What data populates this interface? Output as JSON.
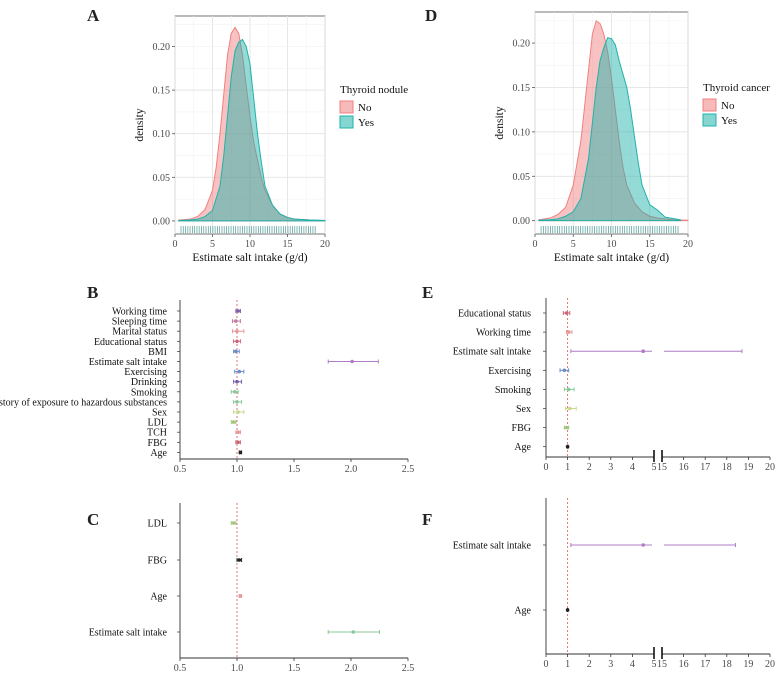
{
  "colors": {
    "no": "#F08080",
    "yes": "#20B2AA",
    "ref_line": "#E06666",
    "grid": "#EBEBEB"
  },
  "chart_data": [
    {
      "panel": "A",
      "type": "area",
      "xlabel": "Estimate salt intake (g/d)",
      "ylabel": "density",
      "xlim": [
        0,
        20
      ],
      "ylim": [
        -0.015,
        0.235
      ],
      "x_ticks": [
        0,
        5,
        10,
        15,
        20
      ],
      "y_ticks": [
        0.0,
        0.05,
        0.1,
        0.15,
        0.2
      ],
      "y_tick_labels": [
        "0.00",
        "0.05",
        "0.10",
        "0.15",
        "0.20"
      ],
      "legend": {
        "title": "Thyroid nodule",
        "position": "right"
      },
      "series": [
        {
          "name": "No",
          "color_key": "no",
          "x": [
            0.5,
            2,
            3,
            4,
            5,
            5.5,
            6,
            6.5,
            7,
            7.5,
            8,
            8.5,
            9,
            9.5,
            10,
            10.5,
            11,
            11.5,
            12,
            13,
            14,
            15,
            16,
            18,
            20
          ],
          "y": [
            0.001,
            0.002,
            0.005,
            0.013,
            0.035,
            0.062,
            0.1,
            0.145,
            0.19,
            0.215,
            0.222,
            0.215,
            0.19,
            0.155,
            0.12,
            0.09,
            0.07,
            0.05,
            0.035,
            0.018,
            0.008,
            0.004,
            0.002,
            0.001,
            0.0005
          ]
        },
        {
          "name": "Yes",
          "color_key": "yes",
          "x": [
            0.5,
            2,
            3,
            4,
            5,
            6,
            6.5,
            7,
            7.5,
            8,
            8.5,
            9,
            9.5,
            10,
            10.5,
            11,
            11.5,
            12,
            13,
            14,
            15,
            16,
            18,
            20
          ],
          "y": [
            0.0005,
            0.001,
            0.002,
            0.005,
            0.012,
            0.04,
            0.075,
            0.12,
            0.165,
            0.195,
            0.205,
            0.208,
            0.2,
            0.18,
            0.14,
            0.1,
            0.068,
            0.04,
            0.018,
            0.008,
            0.004,
            0.002,
            0.001,
            0.0005
          ]
        }
      ]
    },
    {
      "panel": "D",
      "type": "area",
      "xlabel": "Estimate salt intake (g/d)",
      "ylabel": "density",
      "xlim": [
        0,
        20
      ],
      "ylim": [
        -0.015,
        0.235
      ],
      "x_ticks": [
        0,
        5,
        10,
        15,
        20
      ],
      "y_ticks": [
        0.0,
        0.05,
        0.1,
        0.15,
        0.2
      ],
      "y_tick_labels": [
        "0.00",
        "0.05",
        "0.10",
        "0.15",
        "0.20"
      ],
      "legend": {
        "title": "Thyroid cancer",
        "position": "right"
      },
      "series": [
        {
          "name": "No",
          "color_key": "no",
          "x": [
            0.5,
            2,
            3,
            4,
            5,
            6,
            7,
            7.5,
            8,
            8.5,
            9,
            9.5,
            10,
            10.5,
            11,
            11.5,
            12,
            13,
            14,
            15,
            16,
            18,
            20
          ],
          "y": [
            0.001,
            0.003,
            0.007,
            0.015,
            0.04,
            0.09,
            0.17,
            0.21,
            0.225,
            0.222,
            0.21,
            0.19,
            0.16,
            0.125,
            0.09,
            0.06,
            0.04,
            0.02,
            0.01,
            0.005,
            0.003,
            0.001,
            0.0005
          ]
        },
        {
          "name": "Yes",
          "color_key": "yes",
          "x": [
            0.5,
            2,
            3,
            4,
            5,
            6,
            7,
            7.5,
            8,
            8.5,
            9,
            9.5,
            10,
            10.5,
            11,
            11.5,
            12,
            12.5,
            13,
            13.5,
            14,
            15,
            15.5,
            16,
            17,
            19
          ],
          "y": [
            0.0005,
            0.001,
            0.002,
            0.005,
            0.01,
            0.025,
            0.07,
            0.11,
            0.15,
            0.18,
            0.195,
            0.206,
            0.205,
            0.198,
            0.18,
            0.165,
            0.15,
            0.125,
            0.095,
            0.065,
            0.04,
            0.018,
            0.015,
            0.012,
            0.004,
            0.001
          ]
        }
      ]
    },
    {
      "panel": "B",
      "type": "scatter",
      "subtype": "forest",
      "xlim": [
        0.5,
        2.5
      ],
      "x_ticks": [
        0.5,
        1.0,
        1.5,
        2.0,
        2.5
      ],
      "x_tick_labels": [
        "0.5",
        "1.0",
        "1.5",
        "2.0",
        "2.5"
      ],
      "ref_value": 1.0,
      "rows": [
        {
          "label": "Working time",
          "est": 1.01,
          "lo": 0.99,
          "hi": 1.03,
          "color": "#7B5EA7"
        },
        {
          "label": "Sleeping time",
          "est": 0.99,
          "lo": 0.96,
          "hi": 1.03,
          "color": "#C27BA0"
        },
        {
          "label": "Marital status",
          "est": 1.0,
          "lo": 0.96,
          "hi": 1.06,
          "color": "#E69999"
        },
        {
          "label": "Educational status",
          "est": 1.0,
          "lo": 0.97,
          "hi": 1.03,
          "color": "#CC6677"
        },
        {
          "label": "BMI",
          "est": 0.99,
          "lo": 0.97,
          "hi": 1.02,
          "color": "#6A8EC7"
        },
        {
          "label": "Estimate salt intake",
          "est": 2.01,
          "lo": 1.8,
          "hi": 2.24,
          "color": "#B07CC6"
        },
        {
          "label": "Exercising",
          "est": 1.02,
          "lo": 0.98,
          "hi": 1.06,
          "color": "#6A8EC7"
        },
        {
          "label": "Drinking",
          "est": 1.0,
          "lo": 0.97,
          "hi": 1.04,
          "color": "#7B5EA7"
        },
        {
          "label": "Smoking",
          "est": 0.98,
          "lo": 0.95,
          "hi": 1.01,
          "color": "#88C999"
        },
        {
          "label": "History of exposure to hazardous substances",
          "est": 1.0,
          "lo": 0.97,
          "hi": 1.04,
          "color": "#88C999"
        },
        {
          "label": "Sex",
          "est": 1.01,
          "lo": 0.97,
          "hi": 1.06,
          "color": "#C9D88A"
        },
        {
          "label": "LDL",
          "est": 0.97,
          "lo": 0.95,
          "hi": 0.99,
          "color": "#A2C67B"
        },
        {
          "label": "TCH",
          "est": 1.01,
          "lo": 0.99,
          "hi": 1.03,
          "color": "#E69999"
        },
        {
          "label": "FBG",
          "est": 1.01,
          "lo": 0.99,
          "hi": 1.03,
          "color": "#CC6677"
        },
        {
          "label": "Age",
          "est": 1.03,
          "lo": 1.02,
          "hi": 1.04,
          "color": "#222222"
        }
      ]
    },
    {
      "panel": "C",
      "type": "scatter",
      "subtype": "forest",
      "xlim": [
        0.5,
        2.5
      ],
      "x_ticks": [
        0.5,
        1.0,
        1.5,
        2.0,
        2.5
      ],
      "x_tick_labels": [
        "0.5",
        "1.0",
        "1.5",
        "2.0",
        "2.5"
      ],
      "ref_value": 1.0,
      "rows": [
        {
          "label": "LDL",
          "est": 0.97,
          "lo": 0.95,
          "hi": 0.99,
          "color": "#A2C67B"
        },
        {
          "label": "FBG",
          "est": 1.02,
          "lo": 1.0,
          "hi": 1.04,
          "color": "#222222"
        },
        {
          "label": "Age",
          "est": 1.03,
          "lo": 1.02,
          "hi": 1.04,
          "color": "#E69999"
        },
        {
          "label": "Estimate salt intake",
          "est": 2.02,
          "lo": 1.8,
          "hi": 2.25,
          "color": "#88C999"
        }
      ]
    },
    {
      "panel": "E",
      "type": "scatter",
      "subtype": "forest-broken-axis",
      "segments": [
        {
          "xlim": [
            0,
            5
          ],
          "x_ticks": [
            0,
            1,
            2,
            3,
            4,
            5
          ]
        },
        {
          "xlim": [
            15,
            20
          ],
          "x_ticks": [
            15,
            16,
            17,
            18,
            19,
            20
          ]
        }
      ],
      "ref_value": 1.0,
      "rows": [
        {
          "label": "Educational status",
          "est": 0.95,
          "lo": 0.8,
          "hi": 1.1,
          "color": "#CC6677"
        },
        {
          "label": "Working time",
          "est": 1.05,
          "lo": 0.95,
          "hi": 1.2,
          "color": "#E69999"
        },
        {
          "label": "Estimate salt intake",
          "est": 4.5,
          "lo": 1.15,
          "hi": 18.7,
          "color": "#B07CC6"
        },
        {
          "label": "Exercising",
          "est": 0.85,
          "lo": 0.65,
          "hi": 1.05,
          "color": "#6A8EC7"
        },
        {
          "label": "Smoking",
          "est": 1.05,
          "lo": 0.85,
          "hi": 1.3,
          "color": "#88C999"
        },
        {
          "label": "Sex",
          "est": 1.1,
          "lo": 0.9,
          "hi": 1.4,
          "color": "#C9D88A"
        },
        {
          "label": "FBG",
          "est": 0.95,
          "lo": 0.85,
          "hi": 1.05,
          "color": "#A2C67B"
        },
        {
          "label": "Age",
          "est": 1.0,
          "lo": 0.98,
          "hi": 1.02,
          "color": "#222222"
        }
      ]
    },
    {
      "panel": "F",
      "type": "scatter",
      "subtype": "forest-broken-axis",
      "segments": [
        {
          "xlim": [
            0,
            5
          ],
          "x_ticks": [
            0,
            1,
            2,
            3,
            4,
            5
          ]
        },
        {
          "xlim": [
            15,
            20
          ],
          "x_ticks": [
            15,
            16,
            17,
            18,
            19,
            20
          ]
        }
      ],
      "ref_value": 1.0,
      "rows": [
        {
          "label": "Estimate salt intake",
          "est": 4.5,
          "lo": 1.15,
          "hi": 18.4,
          "color": "#B07CC6"
        },
        {
          "label": "Age",
          "est": 1.0,
          "lo": 0.98,
          "hi": 1.02,
          "color": "#222222"
        }
      ]
    }
  ]
}
